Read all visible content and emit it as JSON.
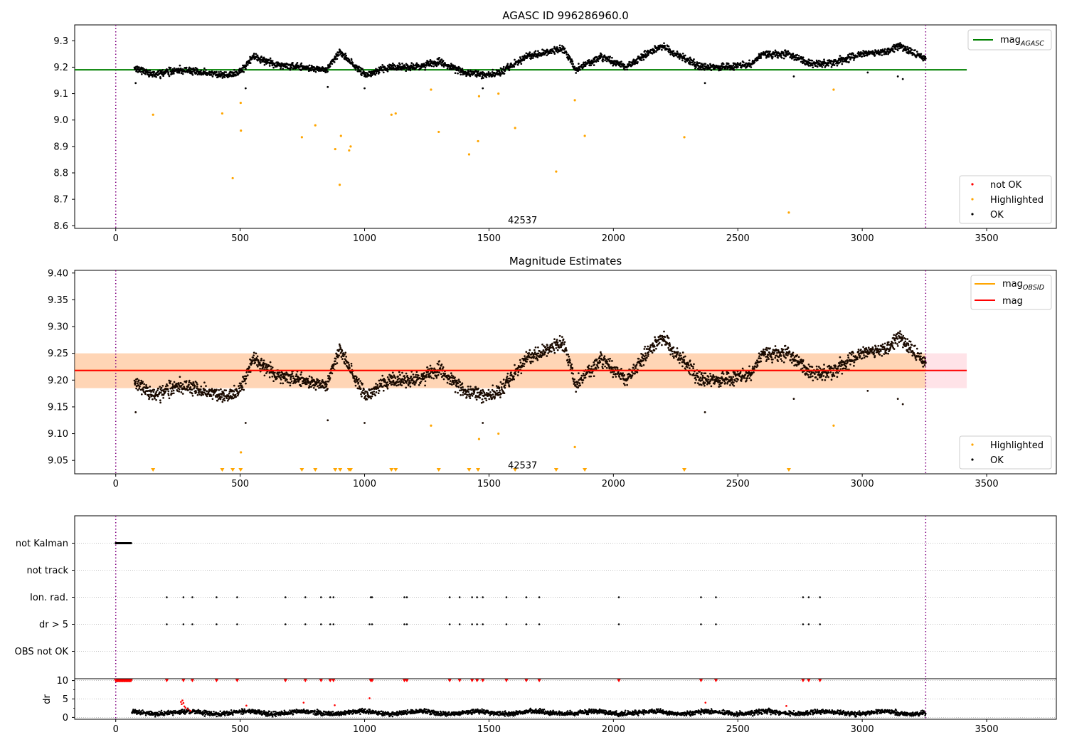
{
  "figure": {
    "title": "AGASC ID 996286960.0",
    "obsid_label": "42537"
  },
  "chart_data": [
    {
      "id": "top",
      "type": "scatter",
      "title": "AGASC ID 996286960.0",
      "xlim": [
        -165,
        3780
      ],
      "ylim": [
        8.59,
        9.36
      ],
      "xticks": [
        0,
        500,
        1000,
        1500,
        2000,
        2500,
        3000,
        3500
      ],
      "yticks": [
        8.6,
        8.7,
        8.8,
        8.9,
        9.0,
        9.1,
        9.2,
        9.3
      ],
      "yticklabels": [
        "8.6",
        "8.7",
        "8.8",
        "8.9",
        "9.0",
        "9.1",
        "9.2",
        "9.3"
      ],
      "vlines": [
        0,
        3255
      ],
      "annotation": {
        "text": "42537",
        "x": 1635,
        "y": 8.62
      },
      "lines": [
        {
          "name": "mag_AGASC",
          "color": "#008000",
          "x": [
            -165,
            3420
          ],
          "y": [
            9.19,
            9.19
          ]
        }
      ],
      "legend_upper": [
        {
          "label": "mag",
          "sub": "AGASC",
          "color": "#008000",
          "kind": "line"
        }
      ],
      "legend_lower": [
        {
          "label": "not OK",
          "color": "#ff0000",
          "kind": "dot"
        },
        {
          "label": "Highlighted",
          "color": "#ffa500",
          "kind": "dot"
        },
        {
          "label": "OK",
          "color": "#000000",
          "kind": "dot"
        }
      ],
      "series": [
        {
          "name": "Highlighted",
          "color": "#ffa500",
          "x": [
            150,
            428,
            470,
            502,
            503,
            748,
            802,
            882,
            900,
            905,
            938,
            944,
            1108,
            1125,
            1267,
            1298,
            1420,
            1456,
            1460,
            1538,
            1605,
            1770,
            1845,
            1885,
            2285,
            2705,
            2885
          ],
          "y": [
            9.02,
            9.025,
            8.78,
            9.065,
            8.96,
            8.935,
            8.98,
            8.89,
            8.755,
            8.94,
            8.885,
            8.9,
            9.02,
            9.025,
            9.115,
            8.955,
            8.87,
            8.92,
            9.09,
            9.1,
            8.97,
            8.805,
            9.075,
            8.94,
            8.935,
            8.65,
            9.115
          ]
        },
        {
          "name": "OK",
          "color": "#000000",
          "baseline": 9.0,
          "x": [
            75,
            150,
            250,
            350,
            450,
            500,
            550,
            650,
            750,
            850,
            900,
            1000,
            1100,
            1200,
            1300,
            1400,
            1500,
            1550,
            1650,
            1750,
            1800,
            1850,
            1950,
            2050,
            2150,
            2200,
            2250,
            2350,
            2450,
            2550,
            2600,
            2700,
            2800,
            2900,
            3000,
            3100,
            3150,
            3255
          ],
          "y": [
            9.2,
            9.17,
            9.19,
            9.18,
            9.17,
            9.18,
            9.24,
            9.21,
            9.2,
            9.19,
            9.26,
            9.17,
            9.2,
            9.2,
            9.22,
            9.18,
            9.17,
            9.18,
            9.24,
            9.26,
            9.27,
            9.19,
            9.24,
            9.2,
            9.26,
            9.28,
            9.25,
            9.2,
            9.2,
            9.21,
            9.25,
            9.25,
            9.21,
            9.22,
            9.25,
            9.26,
            9.28,
            9.23
          ],
          "outliers_x": [
            80,
            522,
            852,
            1000,
            1475,
            2368,
            2725,
            3022,
            3143,
            3163
          ],
          "outliers_y": [
            9.14,
            9.12,
            9.125,
            9.12,
            9.12,
            9.14,
            9.165,
            9.18,
            9.165,
            9.155
          ]
        }
      ]
    },
    {
      "id": "mid",
      "type": "scatter",
      "title": "Magnitude Estimates",
      "xlim": [
        -165,
        3780
      ],
      "ylim": [
        9.025,
        9.405
      ],
      "xticks": [
        0,
        500,
        1000,
        1500,
        2000,
        2500,
        3000,
        3500
      ],
      "yticks": [
        9.05,
        9.1,
        9.15,
        9.2,
        9.25,
        9.3,
        9.35,
        9.4
      ],
      "yticklabels": [
        "9.05",
        "9.10",
        "9.15",
        "9.20",
        "9.25",
        "9.30",
        "9.35",
        "9.40"
      ],
      "vlines": [
        0,
        3255
      ],
      "annotation": {
        "text": "42537",
        "x": 1635,
        "y": 9.04
      },
      "band_outer": {
        "x": [
          -165,
          3420
        ],
        "y": [
          9.185,
          9.25
        ],
        "color": "#ffc0cb"
      },
      "band_inner": {
        "x": [
          -165,
          3255
        ],
        "y": [
          9.185,
          9.25
        ],
        "color": "#ffa500"
      },
      "lines": [
        {
          "name": "mag_OBSID",
          "color": "#ffa500",
          "x": [
            -165,
            3255
          ],
          "y": [
            9.218,
            9.218
          ]
        },
        {
          "name": "mag",
          "color": "#ff0000",
          "x": [
            -165,
            3420
          ],
          "y": [
            9.218,
            9.218
          ]
        }
      ],
      "legend_upper": [
        {
          "label": "mag",
          "sub": "OBSID",
          "color": "#ffa500",
          "kind": "line"
        },
        {
          "label": "mag",
          "sub": "",
          "color": "#ff0000",
          "kind": "line"
        }
      ],
      "legend_lower": [
        {
          "label": "Highlighted",
          "color": "#ffa500",
          "kind": "dot"
        },
        {
          "label": "OK",
          "color": "#000000",
          "kind": "dot"
        }
      ],
      "markers_bottom": {
        "color": "#ffa500",
        "x": [
          150,
          428,
          470,
          502,
          748,
          802,
          882,
          902,
          938,
          944,
          1108,
          1125,
          1298,
          1420,
          1456,
          1605,
          1770,
          1885,
          2285,
          2705
        ]
      },
      "series": [
        {
          "name": "Highlighted",
          "color": "#ffa500",
          "x": [
            503,
            1267,
            1460,
            1538,
            1845,
            2885
          ],
          "y": [
            9.065,
            9.115,
            9.09,
            9.1,
            9.075,
            9.115
          ]
        },
        {
          "name": "OK",
          "color": "#000000",
          "baseline": 9.0,
          "x": [
            75,
            150,
            250,
            350,
            450,
            500,
            550,
            650,
            750,
            850,
            900,
            1000,
            1100,
            1200,
            1300,
            1400,
            1500,
            1550,
            1650,
            1750,
            1800,
            1850,
            1950,
            2050,
            2150,
            2200,
            2250,
            2350,
            2450,
            2550,
            2600,
            2700,
            2800,
            2900,
            3000,
            3100,
            3150,
            3255
          ],
          "y": [
            9.2,
            9.17,
            9.19,
            9.18,
            9.17,
            9.18,
            9.24,
            9.21,
            9.2,
            9.19,
            9.26,
            9.17,
            9.2,
            9.2,
            9.22,
            9.18,
            9.17,
            9.18,
            9.24,
            9.26,
            9.27,
            9.19,
            9.24,
            9.2,
            9.26,
            9.28,
            9.25,
            9.2,
            9.2,
            9.21,
            9.25,
            9.25,
            9.21,
            9.22,
            9.25,
            9.26,
            9.28,
            9.23
          ],
          "outliers_x": [
            80,
            522,
            852,
            1000,
            1475,
            2368,
            2725,
            3022,
            3143,
            3163
          ],
          "outliers_y": [
            9.14,
            9.12,
            9.125,
            9.12,
            9.12,
            9.14,
            9.165,
            9.18,
            9.165,
            9.155
          ]
        }
      ]
    },
    {
      "id": "flags",
      "type": "scatter",
      "xlim": [
        -165,
        3780
      ],
      "categories": [
        "not Kalman",
        "not track",
        "Ion. rad.",
        "dr > 5",
        "OBS not OK"
      ],
      "vlines": [
        0,
        3255
      ],
      "not_kalman_range": [
        0,
        62
      ],
      "ion_rad_x": [
        205,
        272,
        308,
        405,
        488,
        682,
        762,
        825,
        862,
        875,
        1025,
        1030,
        1160,
        1170,
        1342,
        1382,
        1432,
        1452,
        1475,
        1570,
        1650,
        1702,
        2022,
        2352,
        2412,
        2762,
        2785,
        2830
      ],
      "dr5_x": [
        205,
        272,
        308,
        405,
        488,
        682,
        762,
        825,
        862,
        875,
        1020,
        1030,
        1160,
        1170,
        1342,
        1382,
        1432,
        1452,
        1475,
        1570,
        1650,
        1702,
        2022,
        2352,
        2412,
        2762,
        2785,
        2830
      ]
    },
    {
      "id": "dr",
      "type": "scatter",
      "ylabel": "dr",
      "xlim": [
        -165,
        3780
      ],
      "ylim": [
        -0.5,
        10.5
      ],
      "xticks": [
        0,
        500,
        1000,
        1500,
        2000,
        2500,
        3000,
        3500
      ],
      "yticks": [
        0,
        5,
        10
      ],
      "yticklabels": [
        "0",
        "5",
        "10"
      ],
      "vlines": [
        0,
        3255
      ],
      "clipped_value": 10,
      "clipped_x": [
        205,
        272,
        308,
        405,
        488,
        682,
        762,
        825,
        862,
        875,
        1025,
        1030,
        1160,
        1170,
        1342,
        1382,
        1432,
        1452,
        1475,
        1570,
        1650,
        1702,
        2022,
        2352,
        2412,
        2762,
        2785,
        2830
      ],
      "clipped_range": [
        0,
        62
      ],
      "red_points": {
        "x": [
          262,
          265,
          268,
          272,
          276,
          280,
          290,
          300,
          525,
          755,
          880,
          1020,
          2370,
          2695
        ],
        "y": [
          4.2,
          3.6,
          4.6,
          3.9,
          3.0,
          2.6,
          2.3,
          1.8,
          3.2,
          4.0,
          3.3,
          5.2,
          4.0,
          3.1
        ]
      },
      "ok_range": [
        65,
        3255
      ],
      "ok_mean": 1.3,
      "ok_spread": 0.7
    }
  ]
}
